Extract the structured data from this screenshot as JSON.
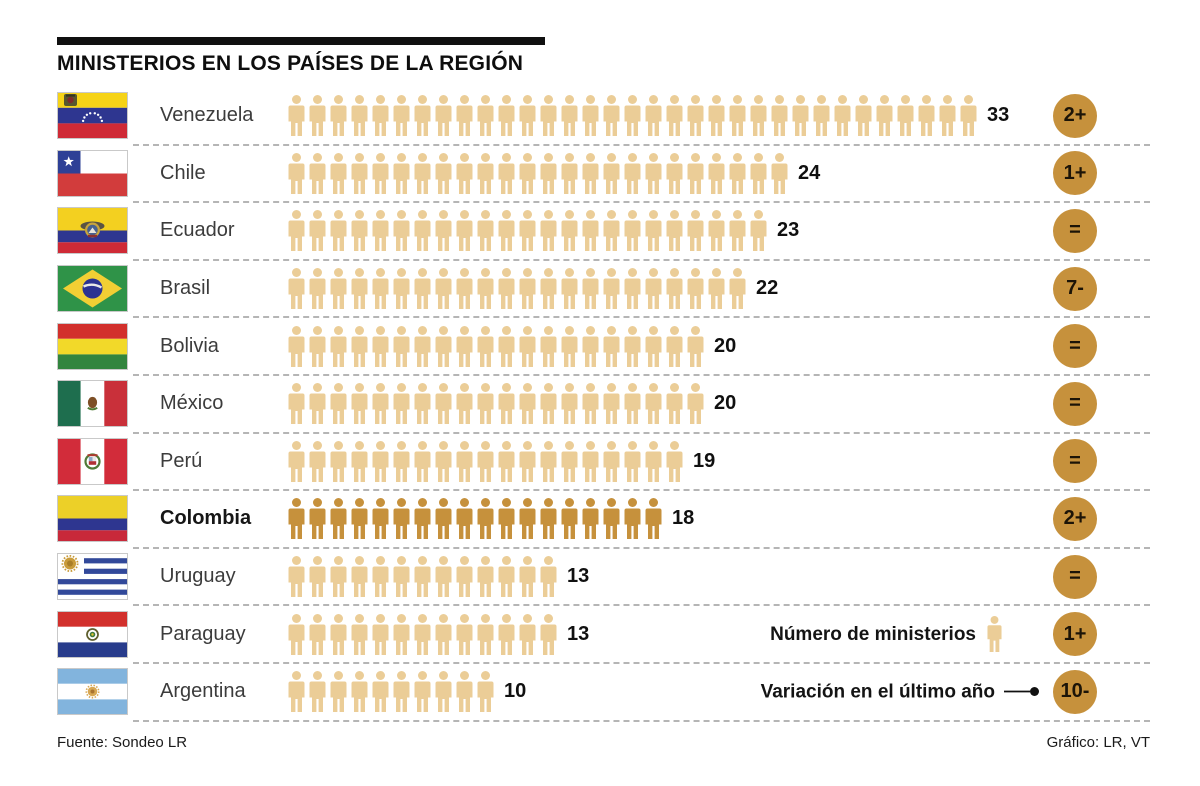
{
  "title": "MINISTERIOS EN LOS PAÍSES DE LA REGIÓN",
  "legend": {
    "ministries_label": "Número de ministerios",
    "variation_label": "Variación en el último año"
  },
  "footer": {
    "source": "Fuente: Sondeo LR",
    "credit": "Gráfico: LR, VT"
  },
  "colors": {
    "icon_light": "#ebcd97",
    "icon_highlight": "#c6913c",
    "badge_bg": "#c6913c",
    "badge_text": "#1c1407",
    "divider": "#b5b5b5"
  },
  "rows": [
    {
      "country": "Venezuela",
      "flag": "venezuela-flag",
      "ministries": 33,
      "variation": "2+",
      "highlighted": false
    },
    {
      "country": "Chile",
      "flag": "chile-flag",
      "ministries": 24,
      "variation": "1+",
      "highlighted": false
    },
    {
      "country": "Ecuador",
      "flag": "ecuador-flag",
      "ministries": 23,
      "variation": "=",
      "highlighted": false
    },
    {
      "country": "Brasil",
      "flag": "brasil-flag",
      "ministries": 22,
      "variation": "7-",
      "highlighted": false
    },
    {
      "country": "Bolivia",
      "flag": "bolivia-flag",
      "ministries": 20,
      "variation": "=",
      "highlighted": false
    },
    {
      "country": "México",
      "flag": "mexico-flag",
      "ministries": 20,
      "variation": "=",
      "highlighted": false
    },
    {
      "country": "Perú",
      "flag": "peru-flag",
      "ministries": 19,
      "variation": "=",
      "highlighted": false
    },
    {
      "country": "Colombia",
      "flag": "colombia-flag",
      "ministries": 18,
      "variation": "2+",
      "highlighted": true
    },
    {
      "country": "Uruguay",
      "flag": "uruguay-flag",
      "ministries": 13,
      "variation": "=",
      "highlighted": false
    },
    {
      "country": "Paraguay",
      "flag": "paraguay-flag",
      "ministries": 13,
      "variation": "1+",
      "highlighted": false
    },
    {
      "country": "Argentina",
      "flag": "argentina-flag",
      "ministries": 10,
      "variation": "10-",
      "highlighted": false
    }
  ],
  "chart_data": {
    "type": "bar",
    "subtype": "pictogram",
    "title": "MINISTERIOS EN LOS PAÍSES DE LA REGIÓN",
    "categories": [
      "Venezuela",
      "Chile",
      "Ecuador",
      "Brasil",
      "Bolivia",
      "México",
      "Perú",
      "Colombia",
      "Uruguay",
      "Paraguay",
      "Argentina"
    ],
    "series": [
      {
        "name": "Número de ministerios",
        "values": [
          33,
          24,
          23,
          22,
          20,
          20,
          19,
          18,
          13,
          13,
          10
        ]
      },
      {
        "name": "Variación en el último año",
        "values": [
          "2+",
          "1+",
          "=",
          "7-",
          "=",
          "=",
          "=",
          "2+",
          "=",
          "1+",
          "10-"
        ]
      }
    ],
    "highlighted_category": "Colombia",
    "orientation": "horizontal",
    "grid": false,
    "legend_position": "bottom-right",
    "source": "Fuente: Sondeo LR",
    "credit": "Gráfico: LR, VT"
  }
}
